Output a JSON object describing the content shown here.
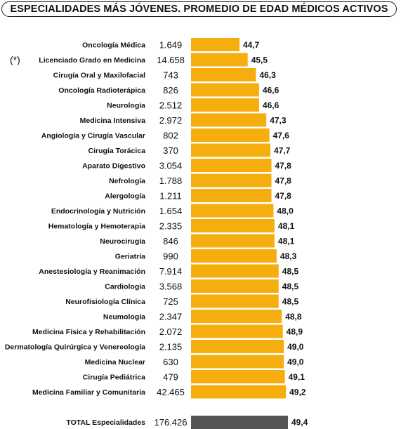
{
  "title": "ESPECIALIDADES MÁS JÓVENES.  PROMEDIO DE EDAD MÉDICOS ACTIVOS",
  "note": "(*)",
  "colors": {
    "bar": "#F6AE0F",
    "total_bar": "#555555"
  },
  "chart_data": {
    "type": "bar",
    "orientation": "horizontal",
    "title": "ESPECIALIDADES MÁS JÓVENES.  PROMEDIO DE EDAD MÉDICOS ACTIVOS",
    "categories": [
      "Oncología Médica",
      "Licenciado Grado en Medicina",
      "Cirugía Oral y Maxilofacial",
      "Oncología Radioterápica",
      "Neurología",
      "Medicina Intensiva",
      "Angiología y Cirugía Vascular",
      "Cirugía Torácica",
      "Aparato Digestivo",
      "Nefrología",
      "Alergología",
      "Endocrinología y Nutrición",
      "Hematología y Hemoterapia",
      "Neurocirugía",
      "Geriatría",
      "Anestesiología y Reanimación",
      "Cardiología",
      "Neurofisiología Clínica",
      "Neumología",
      "Medicina Física y Rehabilitación",
      "Dermatología Quirúrgica y Venereología",
      "Medicina Nuclear",
      "Cirugía Pediátrica",
      "Medicina Familiar y Comunitaria"
    ],
    "counts": [
      "1.649",
      "14.658",
      "743",
      "826",
      "2.512",
      "2.972",
      "802",
      "370",
      "3.054",
      "1.788",
      "1.211",
      "1.654",
      "2.335",
      "846",
      "990",
      "7.914",
      "3.568",
      "725",
      "2.347",
      "2.072",
      "2.135",
      "630",
      "479",
      "42.465"
    ],
    "values": [
      44.7,
      45.5,
      46.3,
      46.6,
      46.6,
      47.3,
      47.6,
      47.7,
      47.8,
      47.8,
      47.8,
      48.0,
      48.1,
      48.1,
      48.3,
      48.5,
      48.5,
      48.5,
      48.8,
      48.9,
      49.0,
      49.0,
      49.1,
      49.2
    ],
    "value_labels": [
      "44,7",
      "45,5",
      "46,3",
      "46,6",
      "46,6",
      "47,3",
      "47,6",
      "47,7",
      "47,8",
      "47,8",
      "47,8",
      "48,0",
      "48,1",
      "48,1",
      "48,3",
      "48,5",
      "48,5",
      "48,5",
      "48,8",
      "48,9",
      "49,0",
      "49,0",
      "49,1",
      "49,2"
    ],
    "total": {
      "label": "TOTAL Especialidades",
      "count": "176.426",
      "value": 49.4,
      "value_label": "49,4"
    },
    "xlim": [
      40,
      50
    ],
    "grid": false
  }
}
